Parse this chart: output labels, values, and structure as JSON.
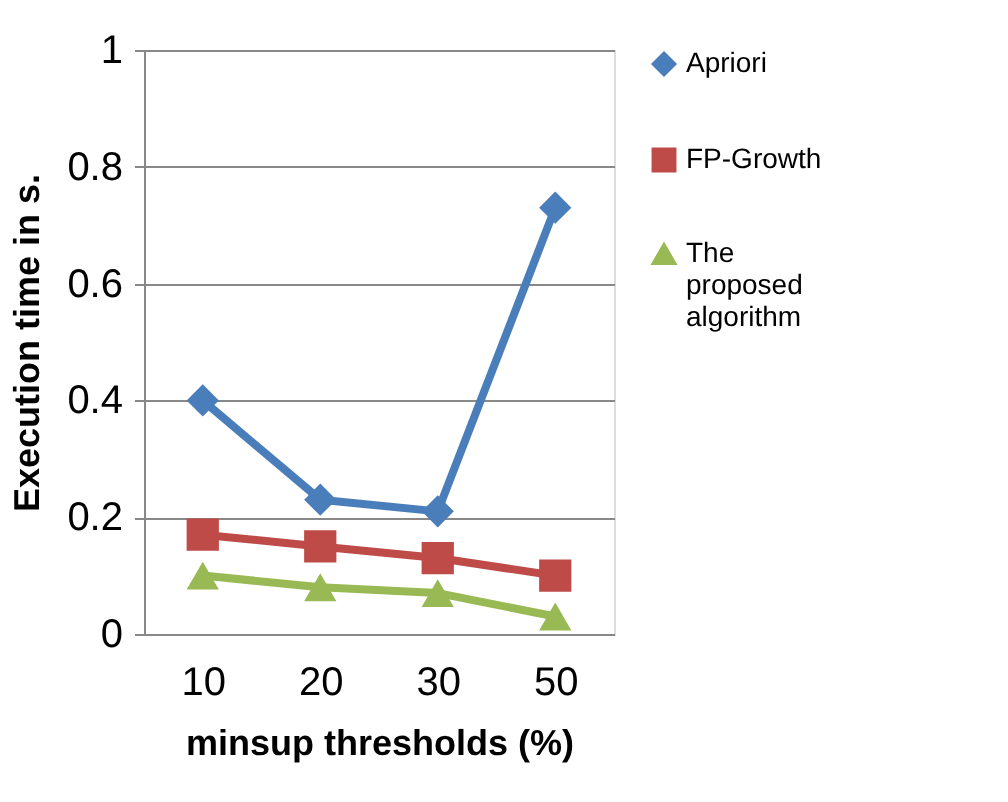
{
  "chart_data": {
    "type": "line",
    "xlabel": "minsup thresholds (%)",
    "ylabel": "Execution time in s.",
    "categories": [
      "10",
      "20",
      "30",
      "50"
    ],
    "series": [
      {
        "name": "Apriori",
        "color": "#4a7ebb",
        "marker": "diamond",
        "values": [
          0.4,
          0.23,
          0.21,
          0.73
        ]
      },
      {
        "name": "FP-Growth",
        "color": "#be4b48",
        "marker": "square",
        "values": [
          0.17,
          0.15,
          0.13,
          0.1
        ]
      },
      {
        "name": "The proposed algorithm",
        "color": "#98b954",
        "marker": "triangle",
        "values": [
          0.1,
          0.08,
          0.07,
          0.03
        ]
      }
    ],
    "ylim": [
      0,
      1
    ],
    "yticks": [
      0,
      0.2,
      0.4,
      0.6,
      0.8,
      1
    ],
    "grid": "y",
    "legend": "right"
  }
}
